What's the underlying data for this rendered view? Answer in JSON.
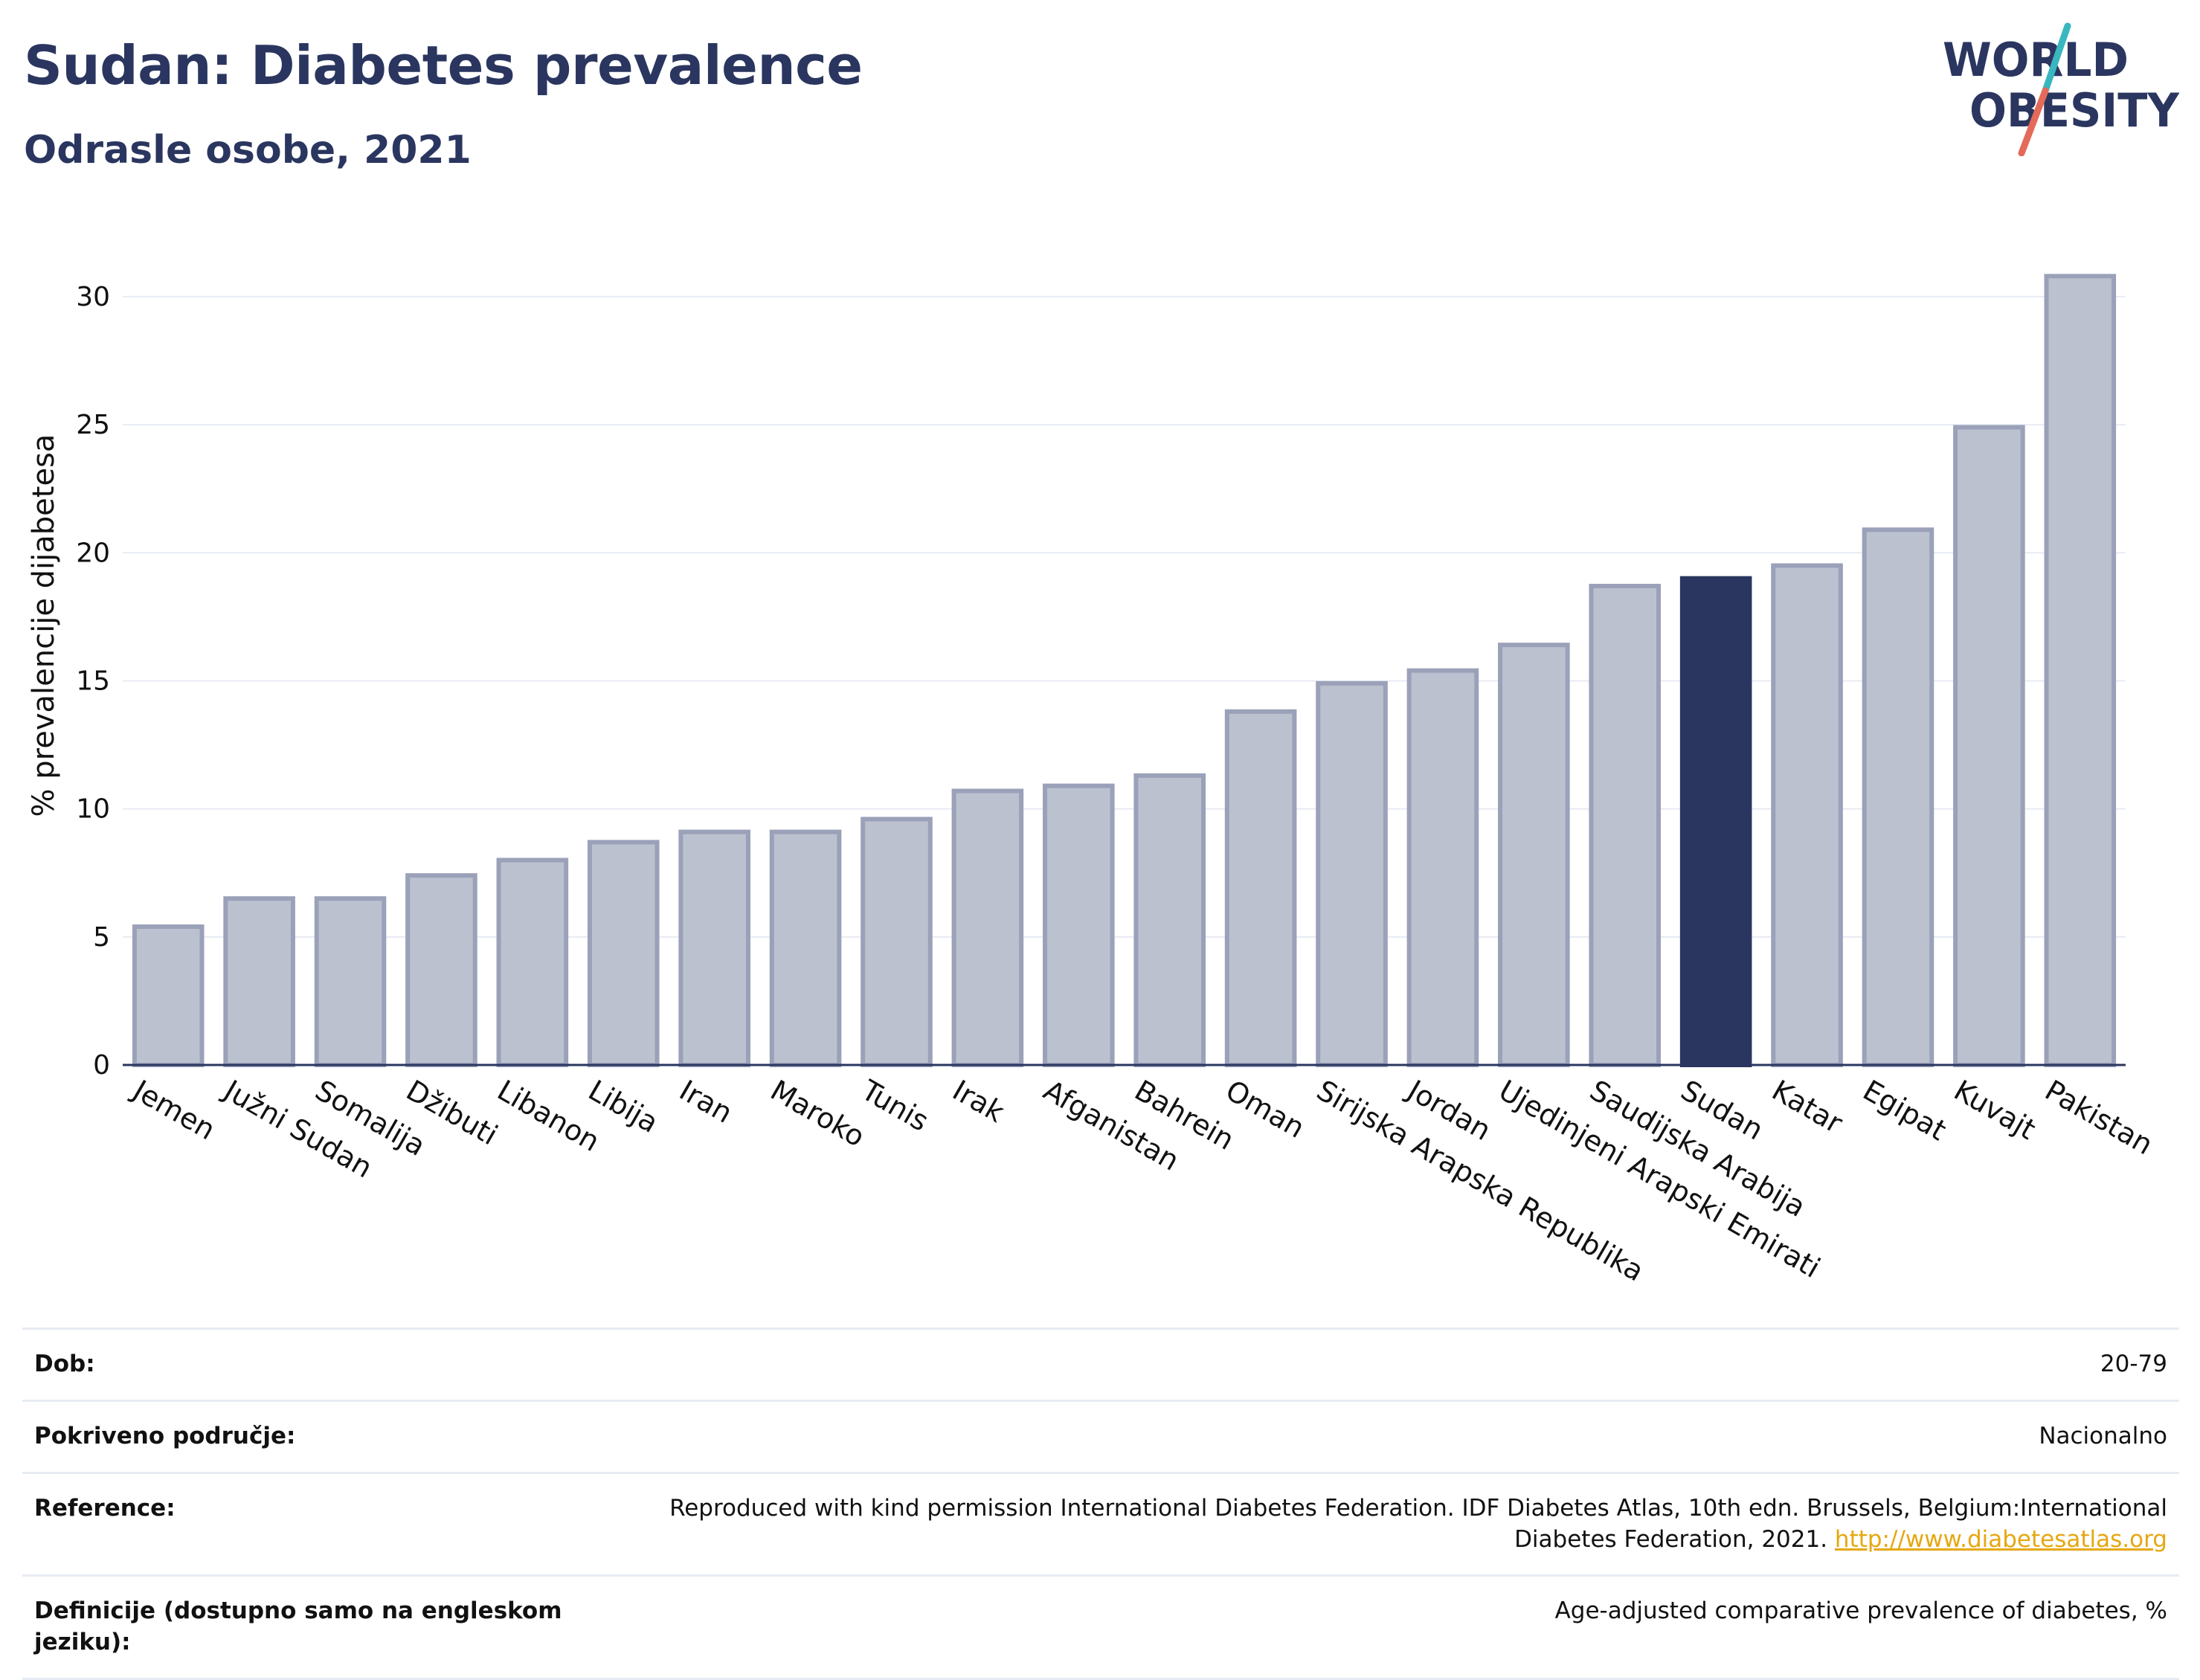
{
  "header": {
    "title": "Sudan: Diabetes prevalence",
    "subtitle": "Odrasle osobe, 2021"
  },
  "logo": {
    "line1": "WORLD",
    "line2": "OBESITY",
    "colors": {
      "text": "#2a365f",
      "slash_top": "#39b6bf",
      "slash_bottom": "#e46a5a"
    }
  },
  "colors": {
    "bar": "#bcc1d0",
    "bar_stroke": "#9aa1b8",
    "highlight": "#2a365f",
    "gridline": "#e7ebf3",
    "axis": "#2a365f"
  },
  "chart_data": {
    "type": "bar",
    "ylabel": "% prevalencije dijabetesa",
    "xlabel": "",
    "ylim": [
      0,
      32
    ],
    "yticks": [
      0,
      5,
      10,
      15,
      20,
      25,
      30
    ],
    "grid": true,
    "highlight": "Sudan",
    "categories": [
      "Jemen",
      "Južni Sudan",
      "Somalija",
      "Džibuti",
      "Libanon",
      "Libija",
      "Iran",
      "Maroko",
      "Tunis",
      "Irak",
      "Afganistan",
      "Bahrein",
      "Oman",
      "Sirijska Arapska Republika",
      "Jordan",
      "Ujedinjeni Arapski Emirati",
      "Saudijska Arabija",
      "Sudan",
      "Katar",
      "Egipat",
      "Kuvajt",
      "Pakistan"
    ],
    "values": [
      5.4,
      6.5,
      6.5,
      7.4,
      8.0,
      8.7,
      9.1,
      9.1,
      9.6,
      10.7,
      10.9,
      11.3,
      13.8,
      14.9,
      15.4,
      16.4,
      18.7,
      19.0,
      19.5,
      20.9,
      24.9,
      30.8
    ]
  },
  "meta": [
    {
      "key": "Dob:",
      "value": "20-79"
    },
    {
      "key": "Pokriveno područje:",
      "value": "Nacionalno"
    },
    {
      "key": "Reference:",
      "value": "Reproduced with kind permission International Diabetes Federation.  IDF Diabetes Atlas, 10th edn. Brussels, Belgium:International Diabetes Federation, 2021.",
      "link": "http://www.diabetesatlas.org"
    },
    {
      "key": "Definicije (dostupno samo na engleskom jeziku):",
      "value": "Age-adjusted comparative prevalence of diabetes, %"
    }
  ]
}
